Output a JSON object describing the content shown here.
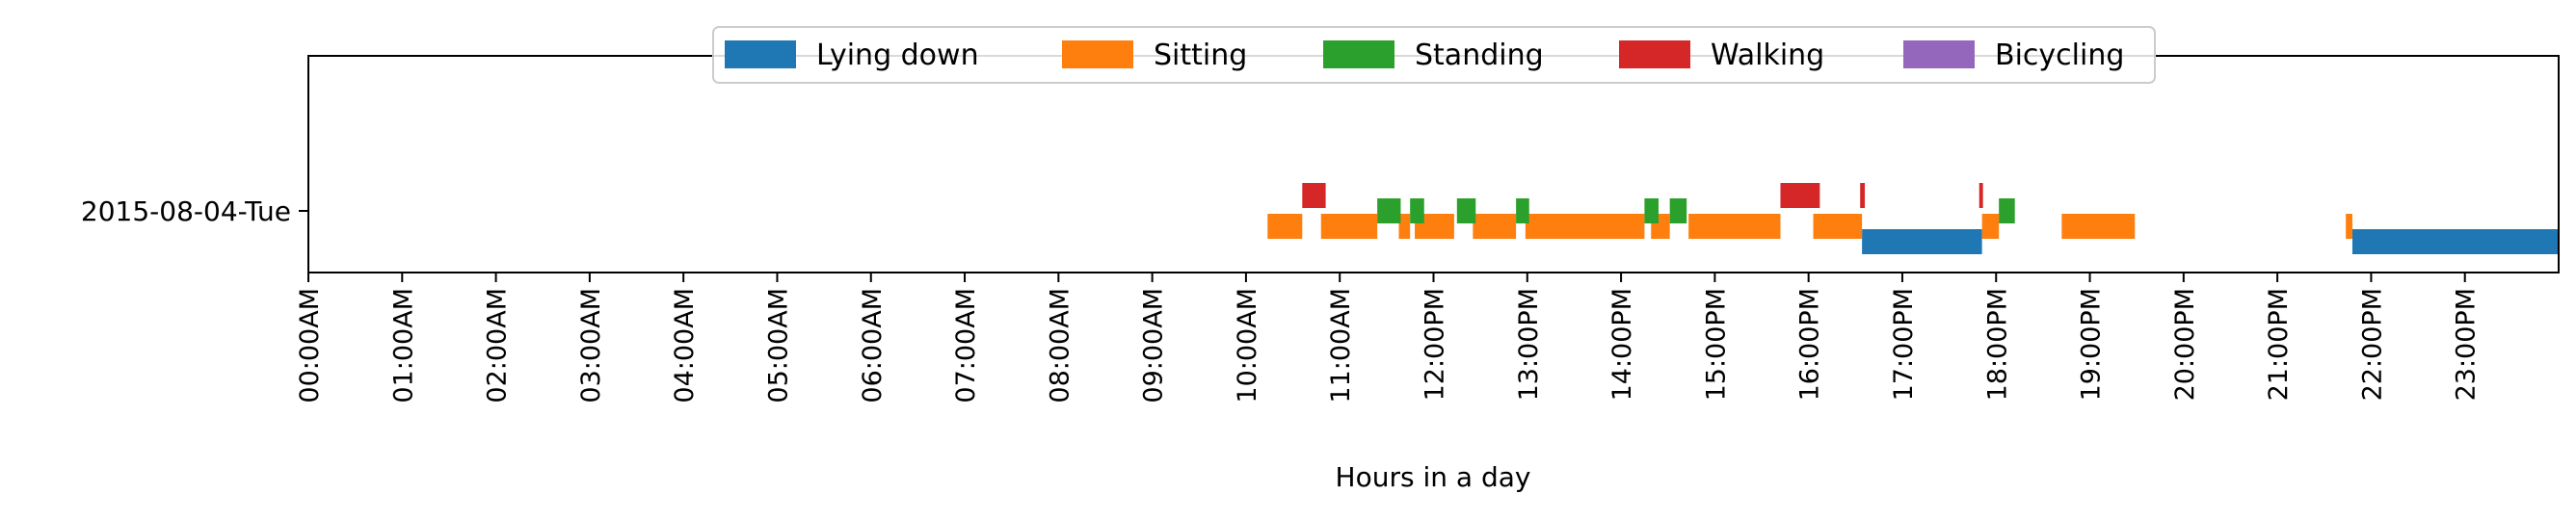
{
  "chart_data": {
    "type": "timeline",
    "xlabel": "Hours in a day",
    "ylabel": "",
    "title": "",
    "xlim": [
      0,
      24
    ],
    "legend_position": "top-center",
    "grid": false,
    "x_tick_values": [
      0,
      1,
      2,
      3,
      4,
      5,
      6,
      7,
      8,
      9,
      10,
      11,
      12,
      13,
      14,
      15,
      16,
      17,
      18,
      19,
      20,
      21,
      22,
      23
    ],
    "x_tick_labels": [
      "00:00AM",
      "01:00AM",
      "02:00AM",
      "03:00AM",
      "04:00AM",
      "05:00AM",
      "06:00AM",
      "07:00AM",
      "08:00AM",
      "09:00AM",
      "10:00AM",
      "11:00AM",
      "12:00PM",
      "13:00PM",
      "14:00PM",
      "15:00PM",
      "16:00PM",
      "17:00PM",
      "18:00PM",
      "19:00PM",
      "20:00PM",
      "21:00PM",
      "22:00PM",
      "23:00PM"
    ],
    "rows": [
      {
        "label": "2015-08-04-Tue"
      }
    ],
    "series": [
      {
        "name": "Lying down",
        "color": "#1f77b4",
        "intervals": [
          [
            16.57,
            17.85
          ],
          [
            21.8,
            24.0
          ]
        ]
      },
      {
        "name": "Sitting",
        "color": "#ff7f0e",
        "intervals": [
          [
            10.23,
            10.6
          ],
          [
            10.8,
            11.4
          ],
          [
            11.63,
            11.75
          ],
          [
            11.8,
            12.22
          ],
          [
            12.42,
            12.88
          ],
          [
            12.98,
            14.25
          ],
          [
            14.32,
            14.52
          ],
          [
            14.72,
            15.7
          ],
          [
            16.05,
            16.57
          ],
          [
            17.85,
            18.03
          ],
          [
            18.7,
            19.48
          ],
          [
            21.73,
            21.8
          ]
        ]
      },
      {
        "name": "Standing",
        "color": "#2ca02c",
        "intervals": [
          [
            11.4,
            11.65
          ],
          [
            11.75,
            11.9
          ],
          [
            12.25,
            12.45
          ],
          [
            12.88,
            13.02
          ],
          [
            14.25,
            14.4
          ],
          [
            14.52,
            14.7
          ],
          [
            18.03,
            18.2
          ]
        ]
      },
      {
        "name": "Walking",
        "color": "#d62728",
        "intervals": [
          [
            10.6,
            10.85
          ],
          [
            15.7,
            16.12
          ],
          [
            16.55,
            16.6
          ],
          [
            17.82,
            17.86
          ]
        ]
      },
      {
        "name": "Bicycling",
        "color": "#9467bd",
        "intervals": []
      }
    ]
  }
}
